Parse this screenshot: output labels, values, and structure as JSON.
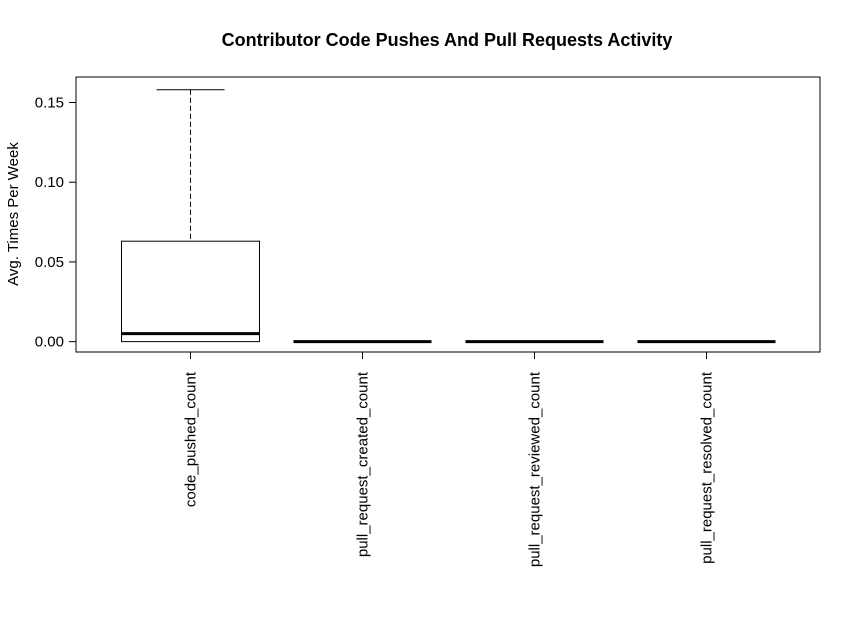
{
  "chart_data": {
    "type": "box",
    "title": "Contributor Code Pushes And Pull Requests Activity",
    "ylabel": "Avg. Times Per Week",
    "xlabel": "",
    "ylim": [
      -0.0065,
      0.166
    ],
    "yticks": [
      0.0,
      0.05,
      0.1,
      0.15
    ],
    "ytick_labels": [
      "0.00",
      "0.05",
      "0.10",
      "0.15"
    ],
    "categories": [
      "code_pushed_count",
      "pull_request_created_count",
      "pull_request_reviewed_count",
      "pull_request_resolved_count"
    ],
    "boxes": [
      {
        "category": "code_pushed_count",
        "min": 0.0,
        "q1": 0.0,
        "median": 0.005,
        "q3": 0.063,
        "max": 0.158
      },
      {
        "category": "pull_request_created_count",
        "min": 0.0,
        "q1": 0.0,
        "median": 0.0,
        "q3": 0.0,
        "max": 0.0
      },
      {
        "category": "pull_request_reviewed_count",
        "min": 0.0,
        "q1": 0.0,
        "median": 0.0,
        "q3": 0.0,
        "max": 0.0
      },
      {
        "category": "pull_request_resolved_count",
        "min": 0.0,
        "q1": 0.0,
        "median": 0.0,
        "q3": 0.0,
        "max": 0.0
      }
    ],
    "grid": false,
    "legend": "none"
  }
}
